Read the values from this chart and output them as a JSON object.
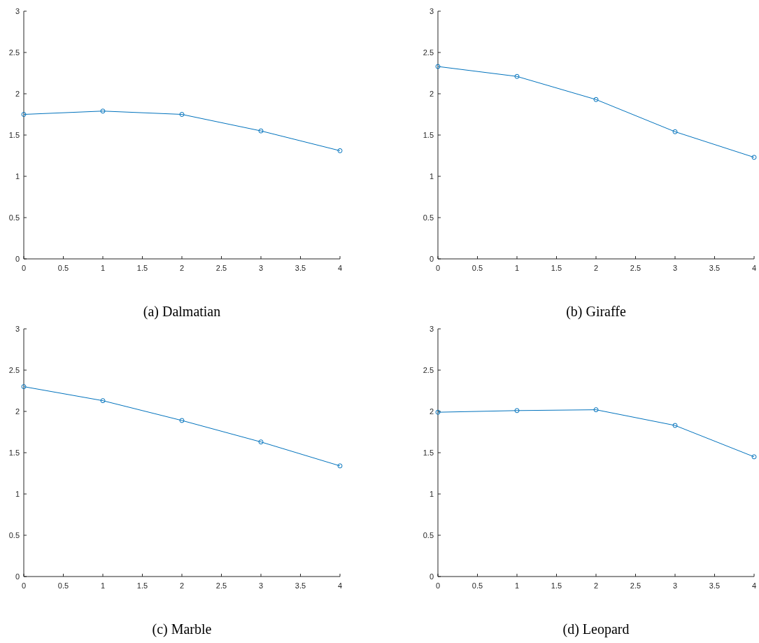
{
  "chart_data": [
    {
      "type": "line",
      "title": "(a) Dalmatian",
      "x": [
        0,
        1,
        2,
        3,
        4
      ],
      "series": [
        {
          "color": "#0072bd",
          "values": [
            1.75,
            1.79,
            1.75,
            1.55,
            1.31
          ]
        }
      ],
      "xlim": [
        0,
        4
      ],
      "xticks": [
        0,
        0.5,
        1,
        1.5,
        2,
        2.5,
        3,
        3.5,
        4
      ],
      "ylim": [
        0,
        3
      ],
      "yticks": [
        0,
        0.5,
        1,
        1.5,
        2,
        2.5,
        3
      ],
      "marker": "circle",
      "line_style": "solid"
    },
    {
      "type": "line",
      "title": "(b) Giraffe",
      "x": [
        0,
        1,
        2,
        3,
        4
      ],
      "series": [
        {
          "color": "#0072bd",
          "values": [
            2.33,
            2.21,
            1.93,
            1.54,
            1.23
          ]
        }
      ],
      "xlim": [
        0,
        4
      ],
      "xticks": [
        0,
        0.5,
        1,
        1.5,
        2,
        2.5,
        3,
        3.5,
        4
      ],
      "ylim": [
        0,
        3
      ],
      "yticks": [
        0,
        0.5,
        1,
        1.5,
        2,
        2.5,
        3
      ],
      "marker": "circle",
      "line_style": "solid"
    },
    {
      "type": "line",
      "title": "(c) Marble",
      "x": [
        0,
        1,
        2,
        3,
        4
      ],
      "series": [
        {
          "color": "#0072bd",
          "values": [
            2.3,
            2.13,
            1.89,
            1.63,
            1.34
          ]
        }
      ],
      "xlim": [
        0,
        4
      ],
      "xticks": [
        0,
        0.5,
        1,
        1.5,
        2,
        2.5,
        3,
        3.5,
        4
      ],
      "ylim": [
        0,
        3
      ],
      "yticks": [
        0,
        0.5,
        1,
        1.5,
        2,
        2.5,
        3
      ],
      "marker": "circle",
      "line_style": "solid"
    },
    {
      "type": "line",
      "title": "(d) Leopard",
      "x": [
        0,
        1,
        2,
        3,
        4
      ],
      "series": [
        {
          "color": "#0072bd",
          "values": [
            1.99,
            2.01,
            2.02,
            1.83,
            1.45
          ]
        }
      ],
      "xlim": [
        0,
        4
      ],
      "xticks": [
        0,
        0.5,
        1,
        1.5,
        2,
        2.5,
        3,
        3.5,
        4
      ],
      "ylim": [
        0,
        3
      ],
      "yticks": [
        0,
        0.5,
        1,
        1.5,
        2,
        2.5,
        3
      ],
      "marker": "circle",
      "line_style": "solid"
    }
  ]
}
